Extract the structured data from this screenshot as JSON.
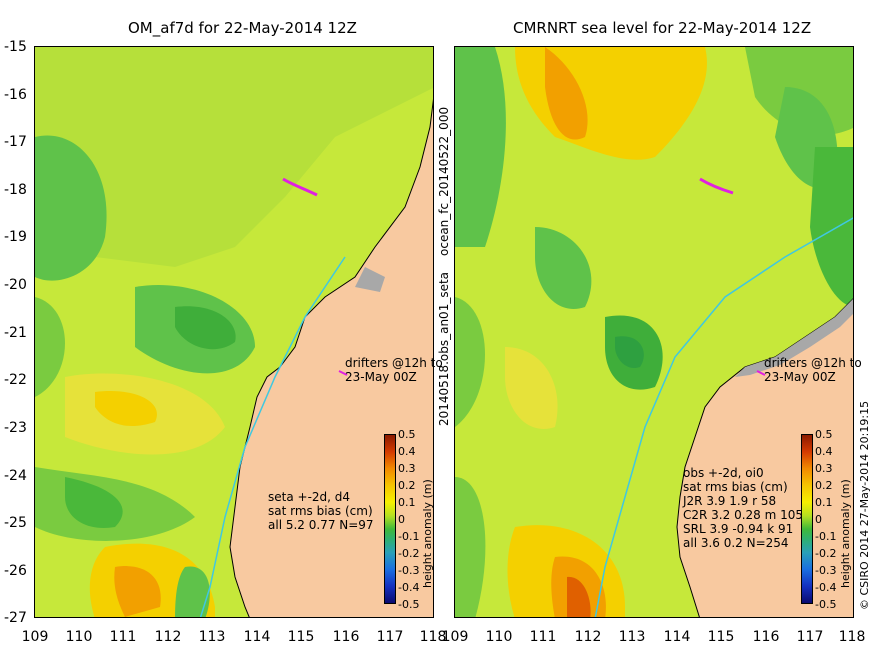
{
  "left_panel": {
    "title": "OM_af7d for 22-May-2014 12Z",
    "drifters_label": [
      "drifters @12h to",
      "23-May 00Z"
    ],
    "stats": [
      "seta +-2d, d4",
      "sat rms bias (cm)",
      "all 5.2 0.77 N=97"
    ],
    "colorbar_label": "height anomaly (m)"
  },
  "right_panel": {
    "title": "CMRNRT sea level  for 22-May-2014 12Z",
    "drifters_label": [
      "drifters @12h to",
      "23-May 00Z"
    ],
    "stats": [
      "obs +-2d, oi0",
      "sat rms bias (cm)",
      "J2R   3.9 1.9 r 58",
      "C2R   3.2 0.28 m 105",
      "SRL   3.9 -0.94 k 91",
      "all   3.6 0.2 N=254"
    ],
    "colorbar_label": "height anomaly (m)",
    "left_vertical_label": "20140518.obs_an01_seta",
    "top_vertical_label": "ocean_fc_20140522_000",
    "right_vertical_label": "© CSIRO 2014   27-May-2014 20:19:15"
  },
  "y_ticks": [
    "-15",
    "-16",
    "-17",
    "-18",
    "-19",
    "-20",
    "-21",
    "-22",
    "-23",
    "-24",
    "-25",
    "-26",
    "-27"
  ],
  "x_ticks_left": [
    "109",
    "110",
    "111",
    "112",
    "113",
    "114",
    "115",
    "116",
    "117",
    "118"
  ],
  "x_ticks_right": [
    "109",
    "110",
    "111",
    "112",
    "113",
    "114",
    "115",
    "116",
    "117",
    "118"
  ],
  "colorbar_ticks": [
    "0.5",
    "0.4",
    "0.3",
    "0.2",
    "0.1",
    "0",
    "-0.1",
    "-0.2",
    "-0.3",
    "-0.4",
    "-0.5"
  ],
  "colors": {
    "land": "#f8c9a0",
    "sea_mid": "#c6e83a",
    "sea_high": "#f4d000",
    "sea_low": "#5fc24a",
    "drifter": "#e020e0",
    "coast": "#000000",
    "track": "#40c8e0"
  }
}
